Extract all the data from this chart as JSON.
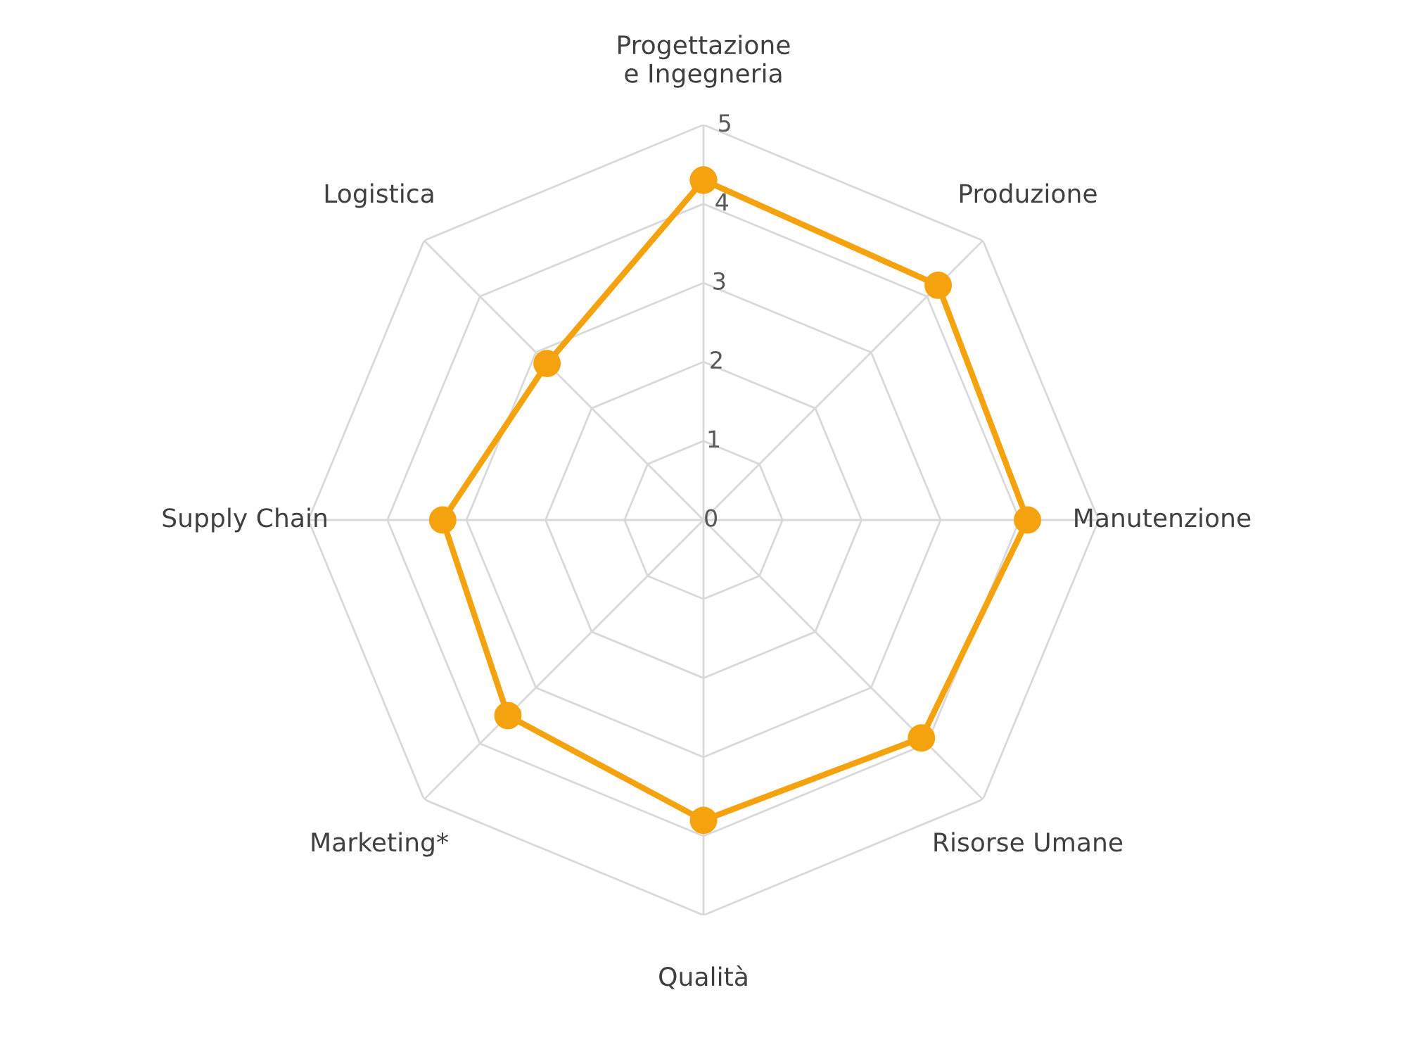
{
  "chart_data": {
    "type": "radar",
    "categories": [
      "Progettazione\ne Ingegneria",
      "Produzione",
      "Manutenzione",
      "Risorse Umane",
      "Qualità",
      "Marketing*",
      "Supply Chain",
      "Logistica"
    ],
    "series": [
      {
        "color": "#f5a20f",
        "values": [
          4.3,
          4.2,
          4.1,
          3.9,
          3.8,
          3.5,
          3.3,
          2.8
        ]
      }
    ],
    "ylim": [
      0,
      5
    ],
    "yticks": [
      0,
      1,
      2,
      3,
      4,
      5
    ],
    "grid": true,
    "marker": "circle",
    "line_style": "solid"
  }
}
